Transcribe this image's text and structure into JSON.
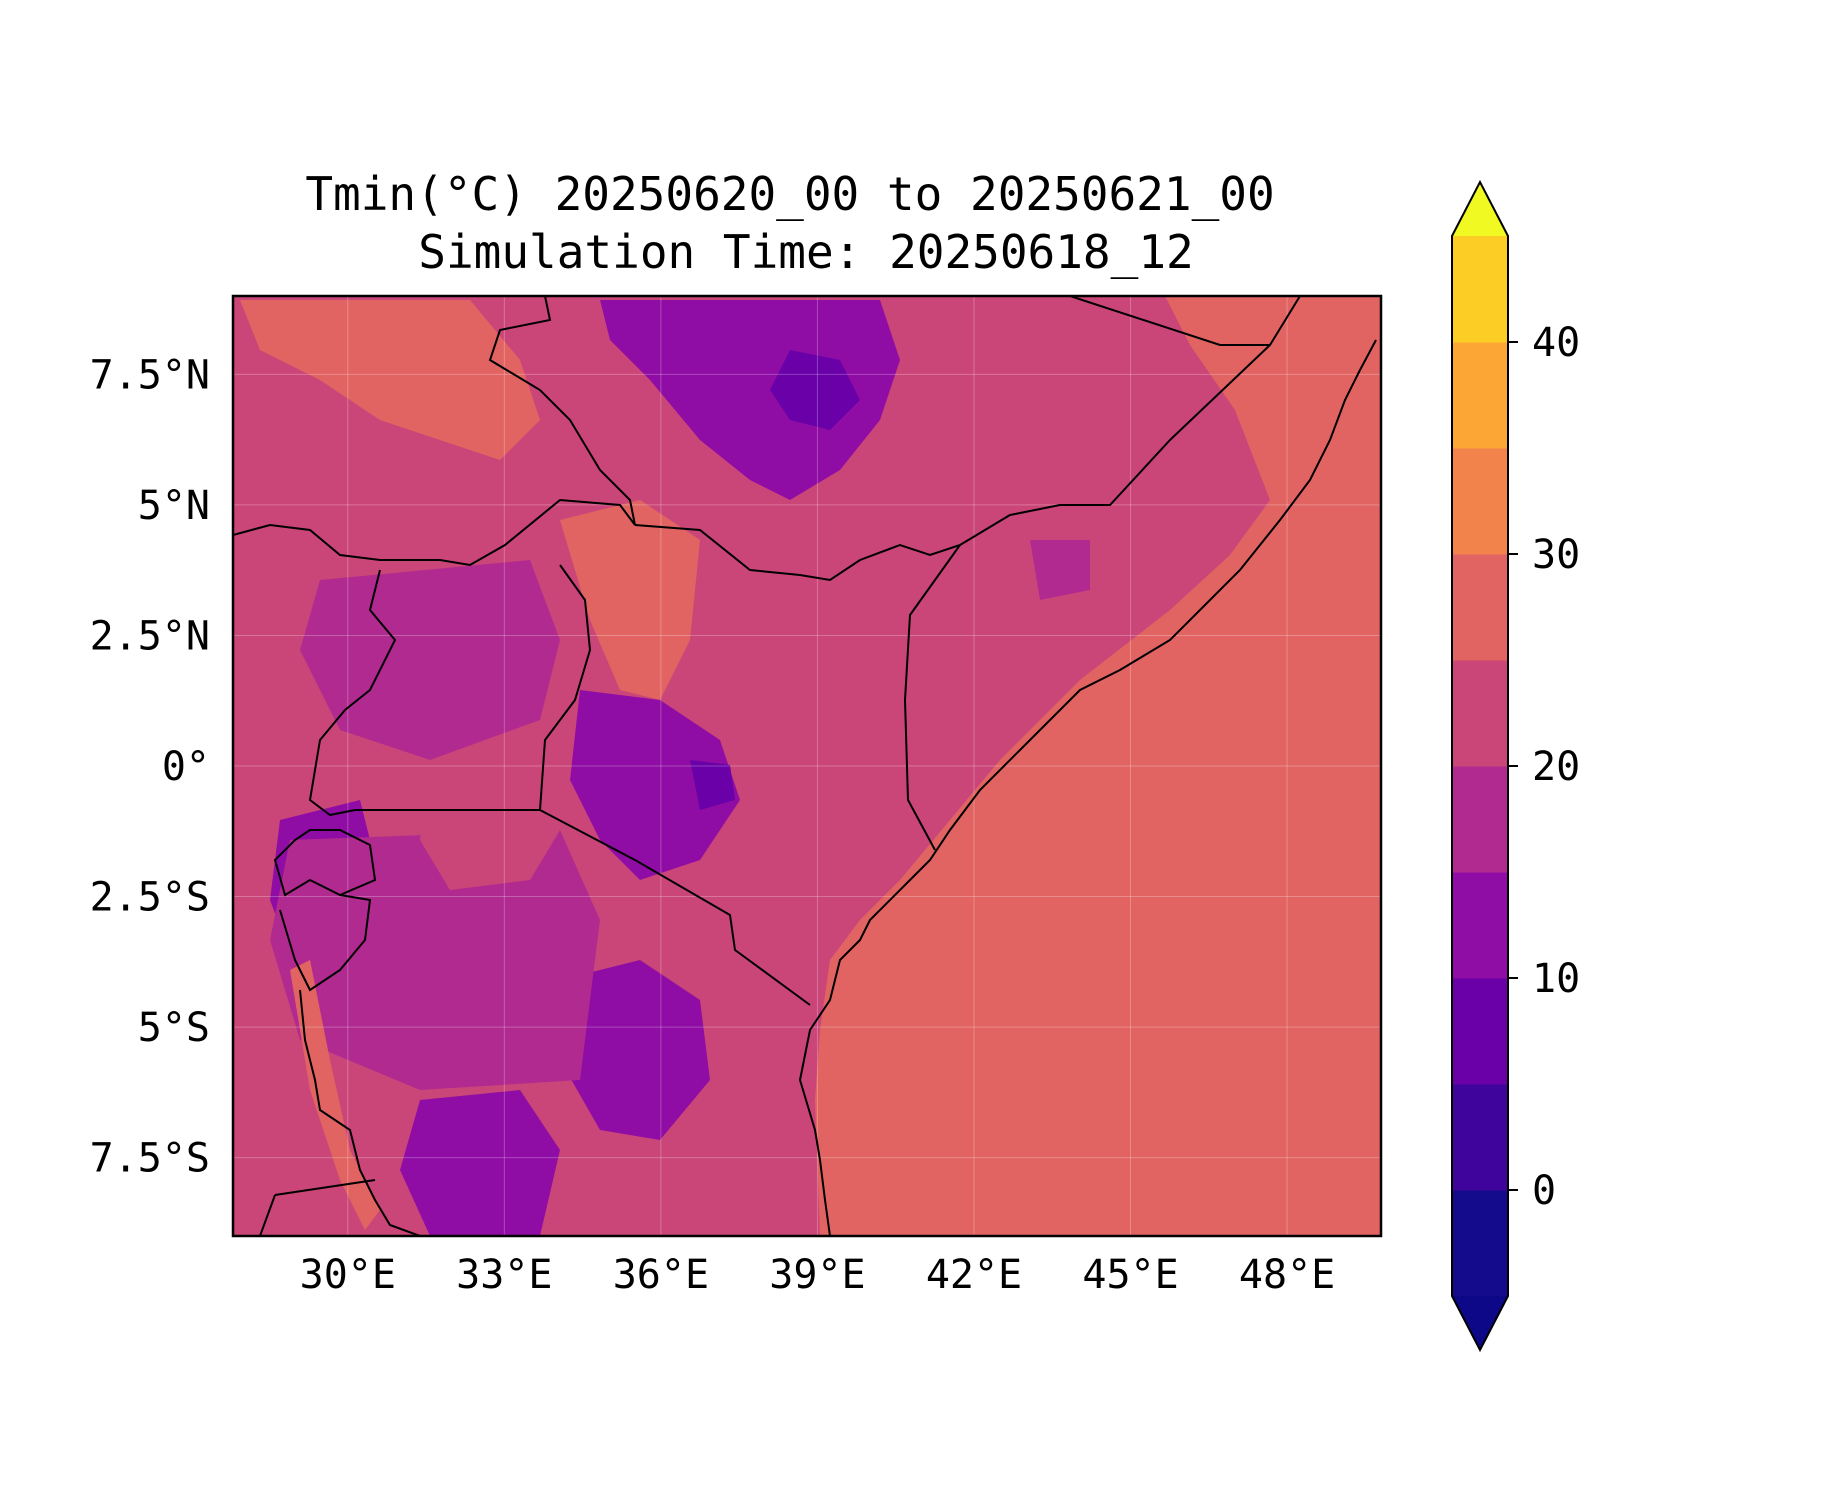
{
  "title": {
    "line1": "Tmin(°C) 20250620_00 to 20250621_00",
    "line2": "Simulation Time: 20250618_12"
  },
  "map": {
    "lon_range": [
      27.8,
      49.8
    ],
    "lat_range": [
      -9.0,
      9.0
    ],
    "x_ticks": [
      {
        "value": 30,
        "label": "30°E"
      },
      {
        "value": 33,
        "label": "33°E"
      },
      {
        "value": 36,
        "label": "36°E"
      },
      {
        "value": 39,
        "label": "39°E"
      },
      {
        "value": 42,
        "label": "42°E"
      },
      {
        "value": 45,
        "label": "45°E"
      },
      {
        "value": 48,
        "label": "48°E"
      }
    ],
    "y_ticks": [
      {
        "value": 7.5,
        "label": "7.5°N"
      },
      {
        "value": 5,
        "label": "5°N"
      },
      {
        "value": 2.5,
        "label": "2.5°N"
      },
      {
        "value": 0,
        "label": "0°"
      },
      {
        "value": -2.5,
        "label": "2.5°S"
      },
      {
        "value": -5,
        "label": "5°S"
      },
      {
        "value": -7.5,
        "label": "7.5°S"
      }
    ],
    "gridlines": true,
    "colormap": "plasma",
    "ocean_value_c": 27,
    "land_background_value_c": 22
  },
  "colorbar": {
    "min": -5,
    "max": 45,
    "step": 5,
    "extend": "both",
    "ticks": [
      {
        "value": 0,
        "label": "0"
      },
      {
        "value": 10,
        "label": "10"
      },
      {
        "value": 20,
        "label": "20"
      },
      {
        "value": 30,
        "label": "30"
      },
      {
        "value": 40,
        "label": "40"
      }
    ],
    "colors": [
      "#140b8c",
      "#3f049c",
      "#6a00a8",
      "#8f0da4",
      "#b12a90",
      "#cb4678",
      "#e16462",
      "#f2844b",
      "#fca636",
      "#fcce25"
    ],
    "under_color": "#0d0887",
    "over_color": "#f0f921"
  }
}
